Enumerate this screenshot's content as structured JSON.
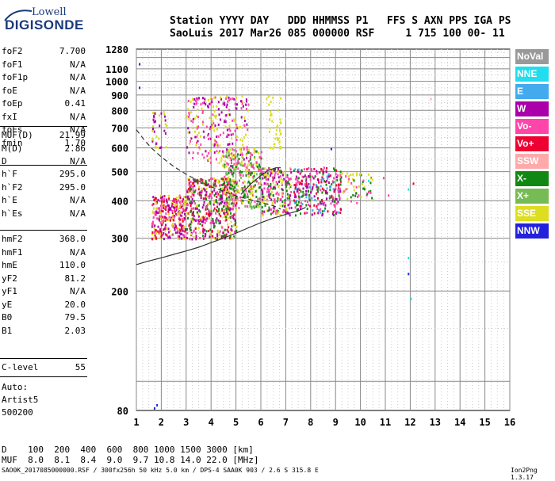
{
  "logo": {
    "line1": "Lowell",
    "line2": "DIGISONDE"
  },
  "header": {
    "row1": "Station YYYY DAY   DDD HHMMSS P1   FFS S AXN PPS IGA PS",
    "row2": "SaoLuis 2017 Mar26 085 000000 RSF     1 715 100 00- 11"
  },
  "params_group1": [
    {
      "name": "foF2",
      "value": "7.700"
    },
    {
      "name": "foF1",
      "value": "N/A"
    },
    {
      "name": "foF1p",
      "value": "N/A"
    },
    {
      "name": "foE",
      "value": "N/A"
    },
    {
      "name": "foEp",
      "value": "0.41"
    },
    {
      "name": "fxI",
      "value": "N/A"
    },
    {
      "name": "foEs",
      "value": "N/A"
    },
    {
      "name": "fmin",
      "value": "1.70"
    }
  ],
  "params_group2": [
    {
      "name": "MUF(D)",
      "value": "21.99"
    },
    {
      "name": "M(D)",
      "value": "2.86"
    },
    {
      "name": "D",
      "value": "N/A"
    }
  ],
  "params_group3": [
    {
      "name": "h`F",
      "value": "295.0"
    },
    {
      "name": "h`F2",
      "value": "295.0"
    },
    {
      "name": "h`E",
      "value": "N/A"
    },
    {
      "name": "h`Es",
      "value": "N/A"
    }
  ],
  "params_group4": [
    {
      "name": "hmF2",
      "value": "368.0"
    },
    {
      "name": "hmF1",
      "value": "N/A"
    },
    {
      "name": "hmE",
      "value": "110.0"
    },
    {
      "name": "yF2",
      "value": "81.2"
    },
    {
      "name": "yF1",
      "value": "N/A"
    },
    {
      "name": "yE",
      "value": "20.0"
    },
    {
      "name": "B0",
      "value": "79.5"
    },
    {
      "name": "B1",
      "value": "2.03"
    }
  ],
  "clevel": {
    "name": "C-level",
    "value": "55"
  },
  "autoscale": {
    "line1": "Auto:",
    "line2": "Artist5",
    "line3": "500200"
  },
  "legend": [
    {
      "label": "NoVal",
      "color": "#999999"
    },
    {
      "label": "NNE",
      "color": "#22ddee"
    },
    {
      "label": "E",
      "color": "#44aaee"
    },
    {
      "label": "W",
      "color": "#aa00aa"
    },
    {
      "label": "Vo-",
      "color": "#ff44aa"
    },
    {
      "label": "Vo+",
      "color": "#ee0033"
    },
    {
      "label": "SSW",
      "color": "#ffaaaa"
    },
    {
      "label": "X-",
      "color": "#118811"
    },
    {
      "label": "X+",
      "color": "#77bb55"
    },
    {
      "label": "SSE",
      "color": "#dddd22"
    },
    {
      "label": "NNW",
      "color": "#2222dd"
    }
  ],
  "footer": {
    "row1": "D    100  200  400  600  800 1000 1500 3000 [km]",
    "row2": "MUF  8.0  8.1  8.4  9.0  9.7 10.8 14.0 22.0 [MHz]",
    "left": "SAO0K_2017085000000.RSF / 300fx256h 50 kHz 5.0 km / DPS-4 SAA0K 903 / 2.6 S 315.8 E",
    "right": "Ion2Png 1.3.17"
  },
  "chart_data": {
    "type": "scatter",
    "title": "",
    "xlabel": "",
    "ylabel": "",
    "xlim": [
      1,
      16
    ],
    "ylim": [
      80,
      1280
    ],
    "grid": true,
    "x_ticks": [
      1,
      2,
      3,
      4,
      5,
      6,
      7,
      8,
      9,
      10,
      11,
      12,
      13,
      14,
      15,
      16
    ],
    "y_ticks": [
      80,
      200,
      300,
      400,
      500,
      600,
      700,
      800,
      900,
      1000,
      1100,
      1280
    ],
    "y_scale": "log",
    "curves": [
      {
        "name": "dashed_profile",
        "style": "dashed",
        "color": "#333333",
        "x": [
          1.0,
          1.3,
          1.6,
          2.0,
          2.5,
          3.0,
          3.5,
          4.0,
          4.5,
          5.0,
          5.5,
          6.0,
          6.5,
          6.8
        ],
        "y": [
          690,
          640,
          600,
          560,
          520,
          490,
          465,
          445,
          430,
          415,
          405,
          395,
          385,
          375
        ]
      },
      {
        "name": "virtual_height_trace",
        "style": "solid",
        "color": "#333333",
        "x": [
          1.0,
          1.5,
          2.0,
          2.5,
          3.0,
          3.5,
          4.0,
          4.5,
          5.0,
          5.5,
          6.0,
          6.5,
          7.0,
          7.5,
          7.8
        ],
        "y": [
          245,
          252,
          258,
          265,
          272,
          280,
          290,
          300,
          312,
          325,
          338,
          350,
          360,
          370,
          380
        ]
      },
      {
        "name": "upper_trace",
        "style": "solid",
        "color": "#333333",
        "x": [
          5.2,
          5.6,
          6.0,
          6.3,
          6.6,
          6.8
        ],
        "y": [
          420,
          455,
          485,
          505,
          515,
          515
        ]
      }
    ],
    "clusters": [
      {
        "x_range": [
          1.6,
          3.0
        ],
        "y_range": [
          300,
          420
        ],
        "colors": [
          "#ee0033",
          "#ff44aa",
          "#aa00aa",
          "#dddd22"
        ],
        "count": 320
      },
      {
        "x_range": [
          3.0,
          5.0
        ],
        "y_range": [
          300,
          480
        ],
        "colors": [
          "#ee0033",
          "#ff44aa",
          "#118811",
          "#dddd22",
          "#aa00aa"
        ],
        "count": 520
      },
      {
        "x_range": [
          3.0,
          5.5
        ],
        "y_range": [
          520,
          900
        ],
        "colors": [
          "#dddd22",
          "#aa00aa",
          "#ff44aa"
        ],
        "count": 260
      },
      {
        "x_range": [
          4.5,
          6.0
        ],
        "y_range": [
          380,
          600
        ],
        "colors": [
          "#dddd22",
          "#77bb55",
          "#118811",
          "#ff44aa"
        ],
        "count": 300
      },
      {
        "x_range": [
          6.0,
          7.2
        ],
        "y_range": [
          360,
          520
        ],
        "colors": [
          "#118811",
          "#dddd22",
          "#ff44aa",
          "#aa00aa"
        ],
        "count": 220
      },
      {
        "x_range": [
          7.3,
          9.2
        ],
        "y_range": [
          360,
          520
        ],
        "colors": [
          "#ff44aa",
          "#ee0033",
          "#44aaee",
          "#118811",
          "#aa00aa"
        ],
        "count": 280
      },
      {
        "x_range": [
          9.0,
          10.5
        ],
        "y_range": [
          390,
          500
        ],
        "colors": [
          "#ff44aa",
          "#118811",
          "#dddd22"
        ],
        "count": 60
      },
      {
        "x_range": [
          1.6,
          2.2
        ],
        "y_range": [
          600,
          800
        ],
        "colors": [
          "#dddd22",
          "#aa00aa"
        ],
        "count": 40
      },
      {
        "x_range": [
          6.2,
          6.8
        ],
        "y_range": [
          600,
          900
        ],
        "colors": [
          "#dddd22"
        ],
        "count": 40
      }
    ],
    "isolated_points": [
      {
        "x": 1.1,
        "y": 1150,
        "color": "#2222dd"
      },
      {
        "x": 1.1,
        "y": 960,
        "color": "#2222dd"
      },
      {
        "x": 1.7,
        "y": 82,
        "color": "#2222dd"
      },
      {
        "x": 1.8,
        "y": 84,
        "color": "#2222dd"
      },
      {
        "x": 11.9,
        "y": 230,
        "color": "#2222dd"
      },
      {
        "x": 11.9,
        "y": 260,
        "color": "#22ddee"
      },
      {
        "x": 12.0,
        "y": 190,
        "color": "#22ddee"
      },
      {
        "x": 11.9,
        "y": 440,
        "color": "#22ddee"
      },
      {
        "x": 12.1,
        "y": 460,
        "color": "#ee0033"
      },
      {
        "x": 10.9,
        "y": 480,
        "color": "#ff44aa"
      },
      {
        "x": 10.3,
        "y": 470,
        "color": "#22ddee"
      },
      {
        "x": 9.9,
        "y": 420,
        "color": "#ff44aa"
      },
      {
        "x": 11.1,
        "y": 420,
        "color": "#ff44aa"
      },
      {
        "x": 12.8,
        "y": 880,
        "color": "#ffaaaa"
      },
      {
        "x": 8.8,
        "y": 600,
        "color": "#2222dd"
      }
    ]
  }
}
